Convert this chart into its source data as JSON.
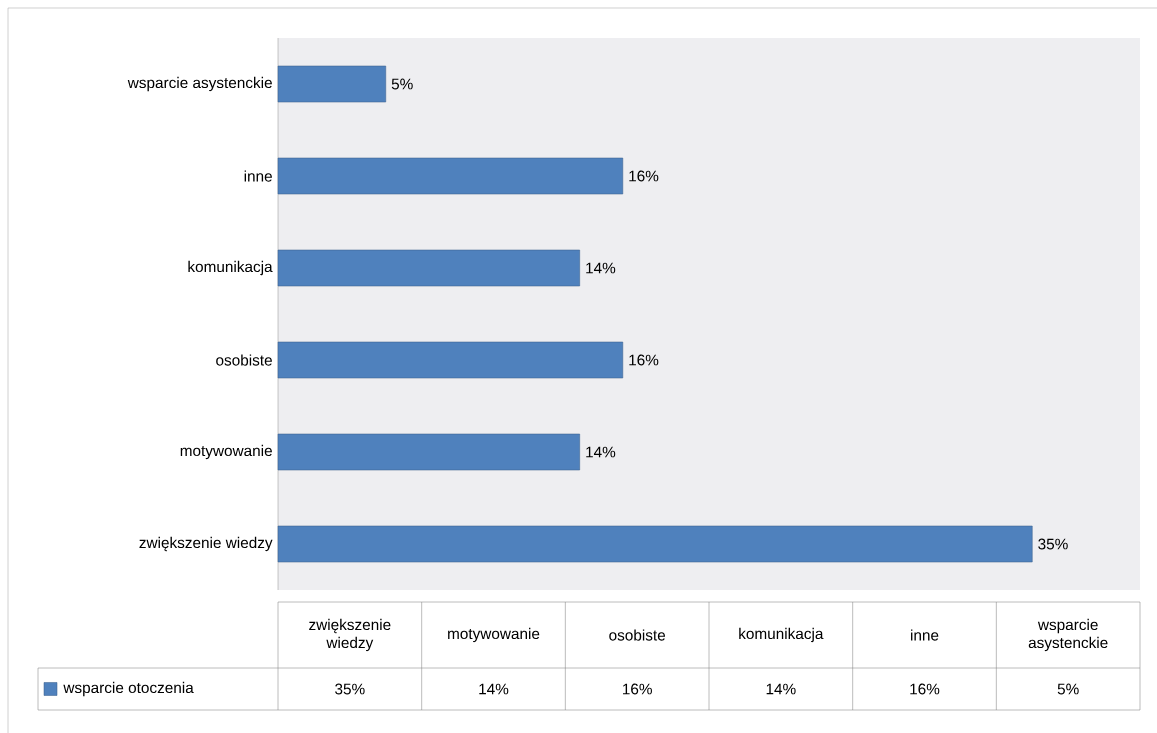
{
  "chart_data": {
    "type": "bar",
    "orientation": "horizontal",
    "categories": [
      "wsparcie asystenckie",
      "inne",
      "komunikacja",
      "osobiste",
      "motywowanie",
      "zwiększenie wiedzy"
    ],
    "series": [
      {
        "name": "wsparcie otoczenia",
        "color": "#4f81bd",
        "values": [
          5,
          16,
          14,
          16,
          14,
          35
        ],
        "value_labels": [
          "5%",
          "16%",
          "14%",
          "16%",
          "14%",
          "35%"
        ]
      }
    ],
    "xlim": [
      0,
      40
    ],
    "legend": "bottom"
  }
}
